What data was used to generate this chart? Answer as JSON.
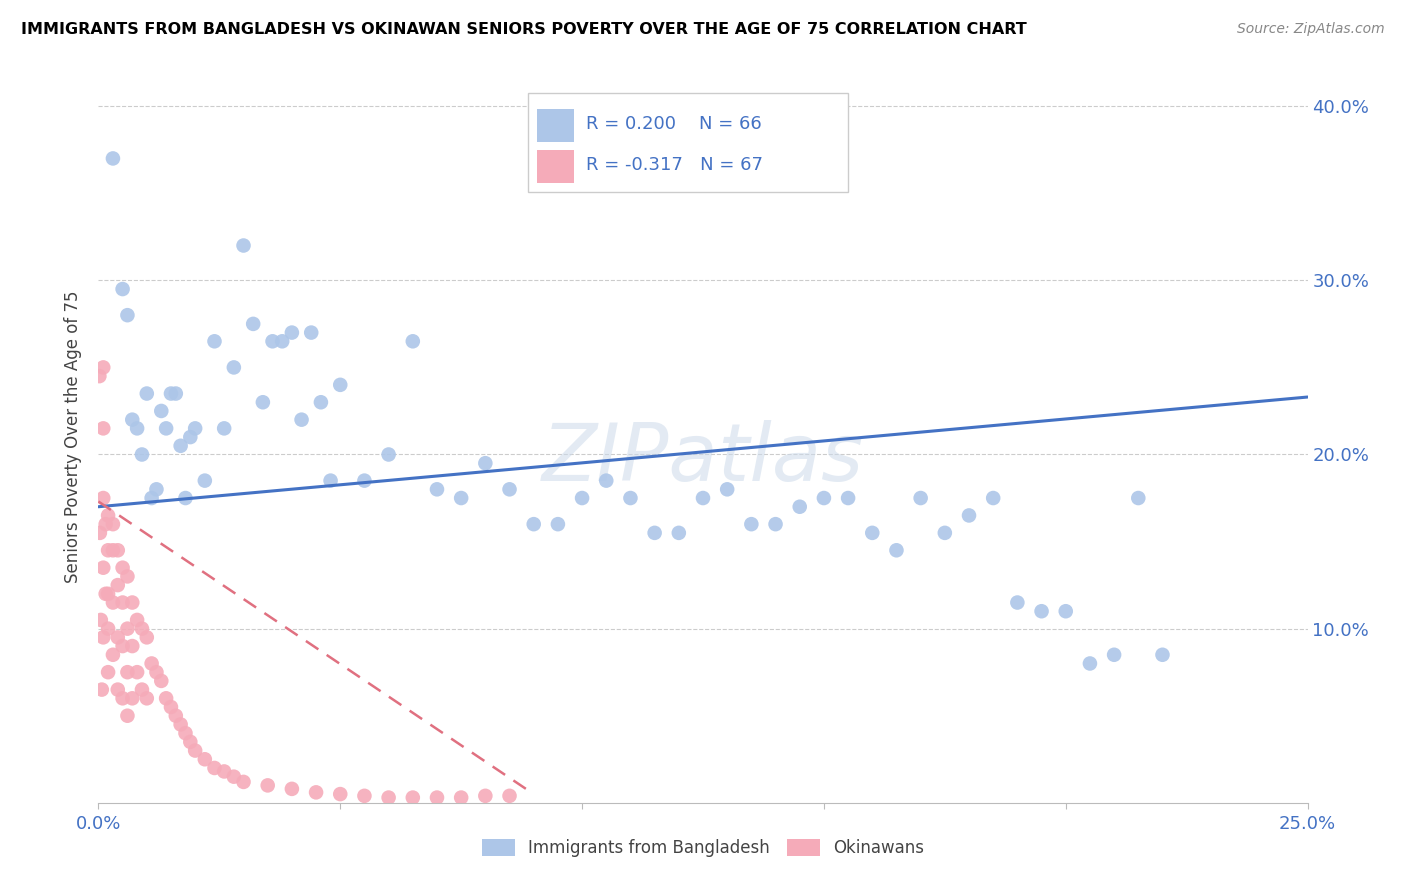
{
  "title": "IMMIGRANTS FROM BANGLADESH VS OKINAWAN SENIORS POVERTY OVER THE AGE OF 75 CORRELATION CHART",
  "source": "Source: ZipAtlas.com",
  "ylabel": "Seniors Poverty Over the Age of 75",
  "xlim": [
    0.0,
    0.25
  ],
  "ylim": [
    0.0,
    0.42
  ],
  "blue_color": "#adc6e8",
  "pink_color": "#f5abb9",
  "blue_line_color": "#4472c4",
  "pink_line_color": "#e07080",
  "watermark": "ZIPatlas",
  "legend_R_blue": "R = 0.200",
  "legend_N_blue": "N = 66",
  "legend_R_pink": "R = -0.317",
  "legend_N_pink": "N = 67",
  "legend_label_blue": "Immigrants from Bangladesh",
  "legend_label_pink": "Okinawans",
  "blue_line_x": [
    0.0,
    0.25
  ],
  "blue_line_y": [
    0.17,
    0.233
  ],
  "pink_line_x": [
    0.0,
    0.09
  ],
  "pink_line_y": [
    0.173,
    0.005
  ],
  "blue_x": [
    0.003,
    0.005,
    0.006,
    0.007,
    0.008,
    0.009,
    0.01,
    0.011,
    0.012,
    0.013,
    0.014,
    0.015,
    0.016,
    0.017,
    0.018,
    0.019,
    0.02,
    0.022,
    0.024,
    0.026,
    0.028,
    0.03,
    0.032,
    0.034,
    0.036,
    0.038,
    0.04,
    0.042,
    0.044,
    0.046,
    0.048,
    0.05,
    0.055,
    0.06,
    0.065,
    0.07,
    0.075,
    0.08,
    0.085,
    0.09,
    0.095,
    0.1,
    0.105,
    0.11,
    0.115,
    0.12,
    0.125,
    0.13,
    0.135,
    0.14,
    0.145,
    0.15,
    0.155,
    0.16,
    0.165,
    0.17,
    0.175,
    0.18,
    0.185,
    0.19,
    0.195,
    0.2,
    0.205,
    0.21,
    0.215,
    0.22
  ],
  "blue_y": [
    0.37,
    0.295,
    0.28,
    0.22,
    0.215,
    0.2,
    0.235,
    0.175,
    0.18,
    0.225,
    0.215,
    0.235,
    0.235,
    0.205,
    0.175,
    0.21,
    0.215,
    0.185,
    0.265,
    0.215,
    0.25,
    0.32,
    0.275,
    0.23,
    0.265,
    0.265,
    0.27,
    0.22,
    0.27,
    0.23,
    0.185,
    0.24,
    0.185,
    0.2,
    0.265,
    0.18,
    0.175,
    0.195,
    0.18,
    0.16,
    0.16,
    0.175,
    0.185,
    0.175,
    0.155,
    0.155,
    0.175,
    0.18,
    0.16,
    0.16,
    0.17,
    0.175,
    0.175,
    0.155,
    0.145,
    0.175,
    0.155,
    0.165,
    0.175,
    0.115,
    0.11,
    0.11,
    0.08,
    0.085,
    0.175,
    0.085
  ],
  "pink_x": [
    0.0002,
    0.0003,
    0.0005,
    0.0007,
    0.001,
    0.001,
    0.001,
    0.001,
    0.001,
    0.0015,
    0.0015,
    0.002,
    0.002,
    0.002,
    0.002,
    0.002,
    0.003,
    0.003,
    0.003,
    0.003,
    0.004,
    0.004,
    0.004,
    0.004,
    0.005,
    0.005,
    0.005,
    0.005,
    0.006,
    0.006,
    0.006,
    0.006,
    0.007,
    0.007,
    0.007,
    0.008,
    0.008,
    0.009,
    0.009,
    0.01,
    0.01,
    0.011,
    0.012,
    0.013,
    0.014,
    0.015,
    0.016,
    0.017,
    0.018,
    0.019,
    0.02,
    0.022,
    0.024,
    0.026,
    0.028,
    0.03,
    0.035,
    0.04,
    0.045,
    0.05,
    0.055,
    0.06,
    0.065,
    0.07,
    0.075,
    0.08,
    0.085
  ],
  "pink_y": [
    0.245,
    0.155,
    0.105,
    0.065,
    0.25,
    0.215,
    0.175,
    0.135,
    0.095,
    0.16,
    0.12,
    0.165,
    0.145,
    0.12,
    0.1,
    0.075,
    0.16,
    0.145,
    0.115,
    0.085,
    0.145,
    0.125,
    0.095,
    0.065,
    0.135,
    0.115,
    0.09,
    0.06,
    0.13,
    0.1,
    0.075,
    0.05,
    0.115,
    0.09,
    0.06,
    0.105,
    0.075,
    0.1,
    0.065,
    0.095,
    0.06,
    0.08,
    0.075,
    0.07,
    0.06,
    0.055,
    0.05,
    0.045,
    0.04,
    0.035,
    0.03,
    0.025,
    0.02,
    0.018,
    0.015,
    0.012,
    0.01,
    0.008,
    0.006,
    0.005,
    0.004,
    0.003,
    0.003,
    0.003,
    0.003,
    0.004,
    0.004
  ]
}
